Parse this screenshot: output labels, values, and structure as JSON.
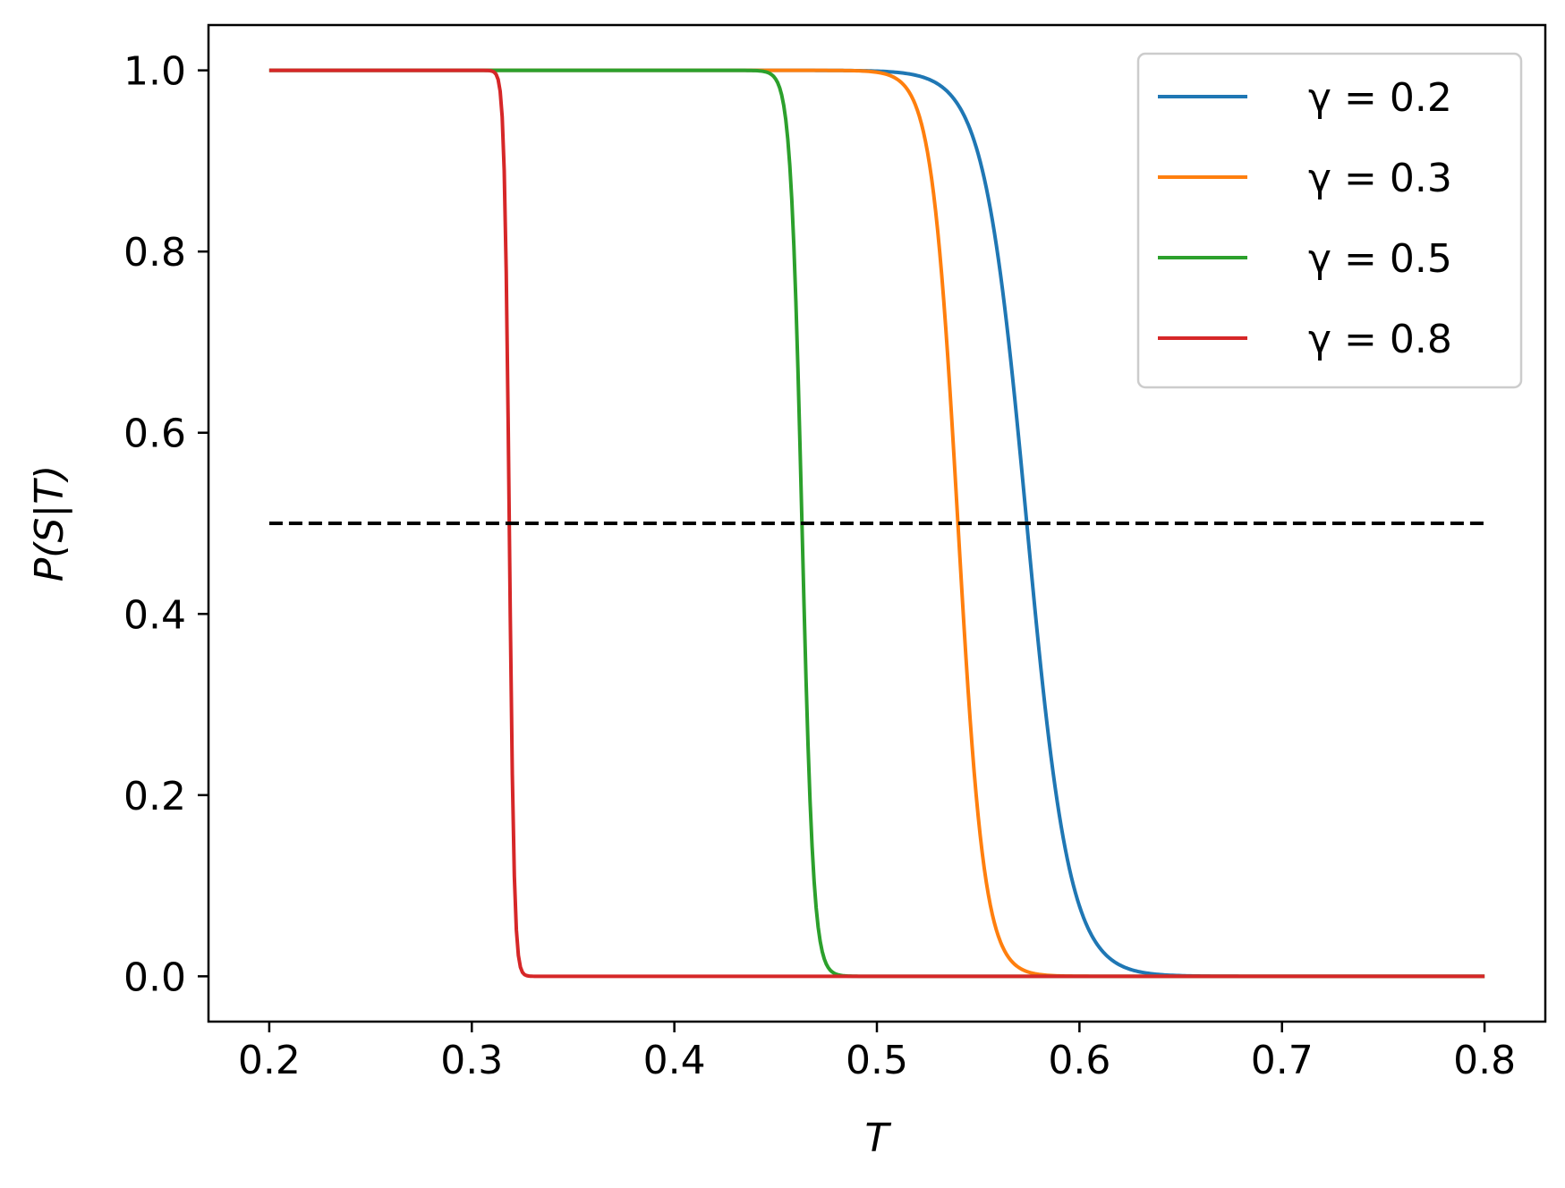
{
  "chart_data": {
    "type": "line",
    "xlabel": "T",
    "ylabel": "P(S|T)",
    "xlim": [
      0.17,
      0.83
    ],
    "ylim": [
      -0.05,
      1.05
    ],
    "xticks": [
      "0.2",
      "0.3",
      "0.4",
      "0.5",
      "0.6",
      "0.7",
      "0.8"
    ],
    "yticks": [
      "0.0",
      "0.2",
      "0.4",
      "0.6",
      "0.8",
      "1.0"
    ],
    "grid": false,
    "legend_position": "top-right",
    "x_range": [
      0.2,
      0.8
    ],
    "series": [
      {
        "name": "γ =  0.2",
        "color": "#1f77b4",
        "midpoint": 0.574,
        "width": 0.0105
      },
      {
        "name": "γ =  0.3",
        "color": "#ff7f0e",
        "midpoint": 0.54,
        "width": 0.0065
      },
      {
        "name": "γ =  0.5",
        "color": "#2ca02c",
        "midpoint": 0.463,
        "width": 0.0028
      },
      {
        "name": "γ =  0.8",
        "color": "#d62728",
        "midpoint": 0.3185,
        "width": 0.0012
      }
    ],
    "reference_line": {
      "y": 0.5,
      "x": [
        0.2,
        0.8
      ],
      "style": "dashed",
      "color": "#000000"
    }
  }
}
